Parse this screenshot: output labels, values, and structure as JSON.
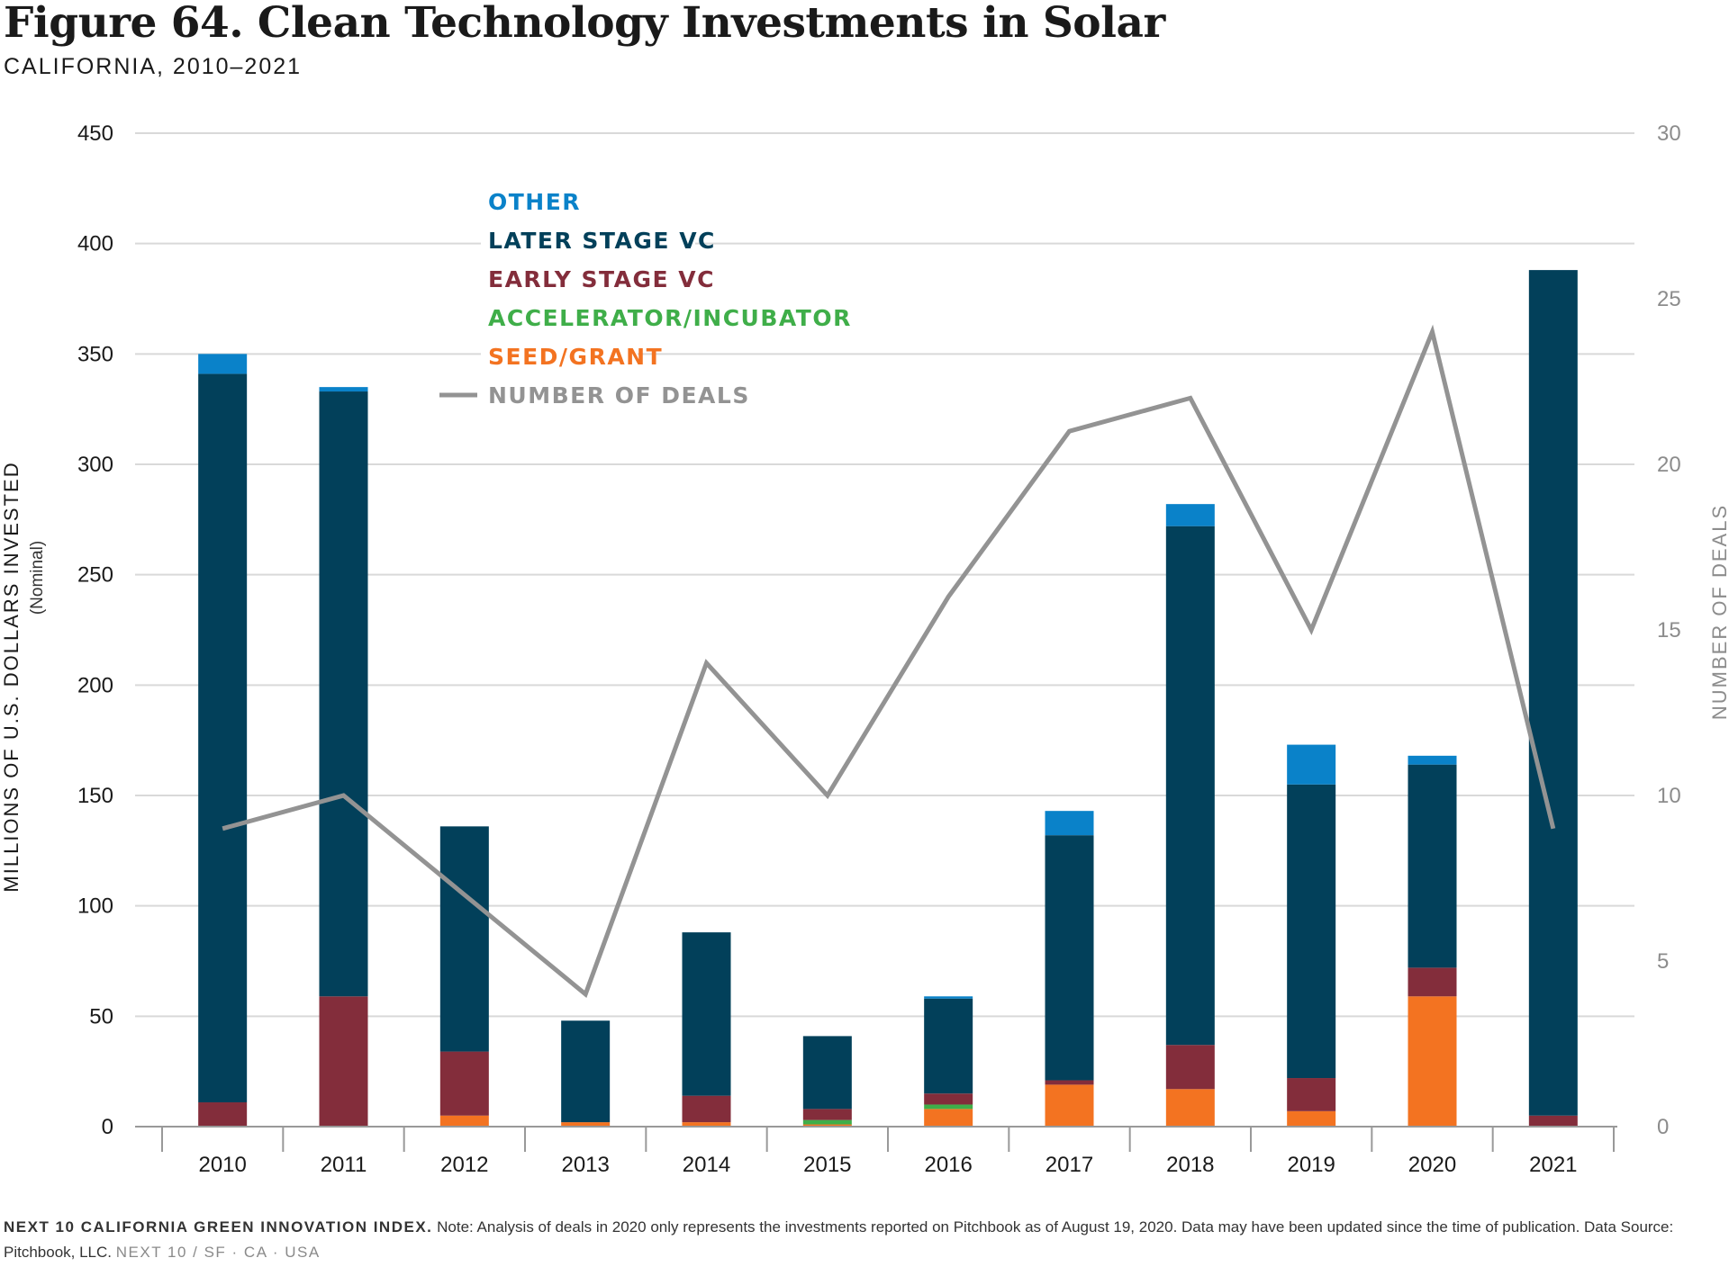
{
  "title": "Figure 64. Clean Technology Investments in Solar",
  "subtitle": "CALIFORNIA, 2010–2021",
  "colors": {
    "other": "#0a82c9",
    "later_stage_vc": "#02405a",
    "early_stage_vc": "#832d3b",
    "accelerator_incubator": "#3fae49",
    "seed_grant": "#f37321",
    "number_of_deals": "#939393",
    "grid": "#d9d9d9",
    "axis_text": "#1a1a1a",
    "right_axis_text": "#8c8c8c"
  },
  "chart_data": {
    "type": "bar",
    "stacked": true,
    "categories": [
      "2010",
      "2011",
      "2012",
      "2013",
      "2014",
      "2015",
      "2016",
      "2017",
      "2018",
      "2019",
      "2020",
      "2021"
    ],
    "series": [
      {
        "name": "SEED/GRANT",
        "key": "seed_grant",
        "values": [
          0,
          0,
          5,
          2,
          2,
          1,
          8,
          19,
          17,
          7,
          59,
          0
        ]
      },
      {
        "name": "ACCELERATOR/INCUBATOR",
        "key": "accelerator_incubator",
        "values": [
          0,
          0,
          0,
          0,
          0,
          2,
          2,
          0,
          0,
          0,
          0,
          0
        ]
      },
      {
        "name": "EARLY STAGE VC",
        "key": "early_stage_vc",
        "values": [
          11,
          59,
          29,
          0,
          12,
          5,
          5,
          2,
          20,
          15,
          13,
          5
        ]
      },
      {
        "name": "LATER STAGE VC",
        "key": "later_stage_vc",
        "values": [
          330,
          274,
          102,
          46,
          74,
          33,
          43,
          111,
          235,
          133,
          92,
          383
        ]
      },
      {
        "name": "OTHER",
        "key": "other",
        "values": [
          9,
          2,
          0,
          0,
          0,
          0,
          1,
          11,
          10,
          18,
          4,
          0
        ]
      }
    ],
    "line_series": {
      "name": "NUMBER OF DEALS",
      "key": "number_of_deals",
      "values": [
        9,
        10,
        7,
        4,
        14,
        10,
        16,
        21,
        22,
        15,
        24,
        9
      ]
    },
    "ylabel": "MILLIONS OF U.S. DOLLARS INVESTED",
    "ylabel_sub": "(Nominal)",
    "y2label": "NUMBER OF DEALS",
    "ylim": [
      0,
      450
    ],
    "y2lim": [
      0,
      30
    ],
    "yticks": [
      "0",
      "50",
      "100",
      "150",
      "200",
      "250",
      "300",
      "350",
      "400",
      "450"
    ],
    "y2ticks": [
      "0",
      "5",
      "10",
      "15",
      "20",
      "25",
      "30"
    ],
    "grid": true,
    "legend_position": "top-center",
    "legend": [
      {
        "label": "OTHER",
        "key": "other"
      },
      {
        "label": "LATER STAGE VC",
        "key": "later_stage_vc"
      },
      {
        "label": "EARLY STAGE VC",
        "key": "early_stage_vc"
      },
      {
        "label": "ACCELERATOR/INCUBATOR",
        "key": "accelerator_incubator"
      },
      {
        "label": "SEED/GRANT",
        "key": "seed_grant"
      },
      {
        "label": "NUMBER OF DEALS",
        "key": "number_of_deals",
        "line": true
      }
    ]
  },
  "footer": {
    "brand": "NEXT 10 CALIFORNIA GREEN INNOVATION INDEX.",
    "note": " Note: Analysis of deals in 2020 only represents the investments reported on Pitchbook as of August 19, 2020. Data may have been updated since the time of publication. Data Source: Pitchbook, LLC.",
    "org": "NEXT 10 / SF · CA · USA"
  }
}
